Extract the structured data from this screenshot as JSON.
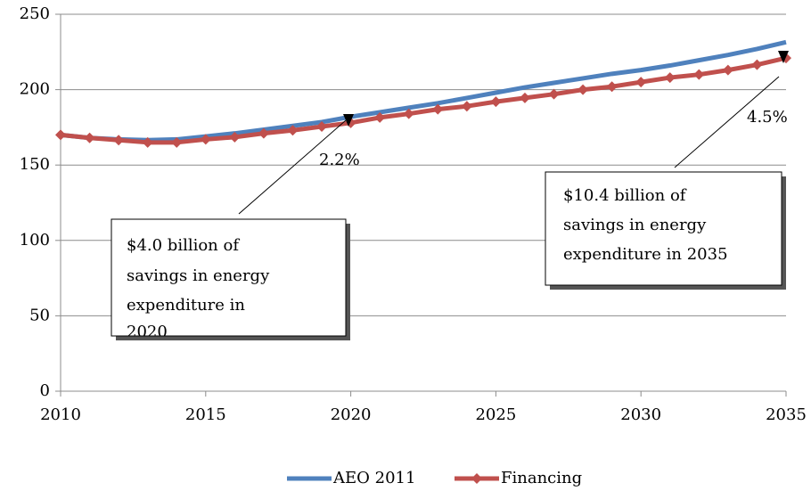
{
  "chart_data": {
    "type": "line",
    "x": [
      2010,
      2011,
      2012,
      2013,
      2014,
      2015,
      2016,
      2017,
      2018,
      2019,
      2020,
      2021,
      2022,
      2023,
      2024,
      2025,
      2026,
      2027,
      2028,
      2029,
      2030,
      2031,
      2032,
      2033,
      2034,
      2035
    ],
    "series": [
      {
        "name": "AEO 2011",
        "color": "#4f81bd",
        "marker": "none",
        "values": [
          170,
          168,
          167,
          166.5,
          167,
          169,
          171,
          173.5,
          176,
          178.5,
          182,
          185,
          188,
          191,
          194.5,
          198,
          201.5,
          204.5,
          207.5,
          210.5,
          213,
          216,
          219.5,
          223,
          227,
          231.5
        ]
      },
      {
        "name": "Financing",
        "color": "#c0504d",
        "marker": "diamond",
        "values": [
          170,
          168,
          166.5,
          165,
          165,
          167,
          168.5,
          171,
          173,
          175.5,
          178,
          181.5,
          184,
          187,
          189,
          192,
          194.5,
          197,
          200,
          202,
          205,
          208,
          210,
          213,
          216.5,
          221
        ]
      }
    ],
    "xlim": [
      2010,
      2035
    ],
    "xticks": [
      2010,
      2015,
      2020,
      2025,
      2030,
      2035
    ],
    "ylim": [
      0,
      250
    ],
    "yticks": [
      0,
      50,
      100,
      150,
      200,
      250
    ],
    "grid": true,
    "legend": "bottom",
    "annotations": [
      {
        "text": "2.2%",
        "x": 2020
      },
      {
        "text": "4.5%",
        "x": 2035
      },
      {
        "lines": [
          "$4.0 billion of",
          "savings in energy",
          "expenditure in",
          "2020"
        ]
      },
      {
        "lines": [
          "$10.4 billion of",
          "savings in energy",
          "expenditure in 2035"
        ]
      }
    ]
  }
}
